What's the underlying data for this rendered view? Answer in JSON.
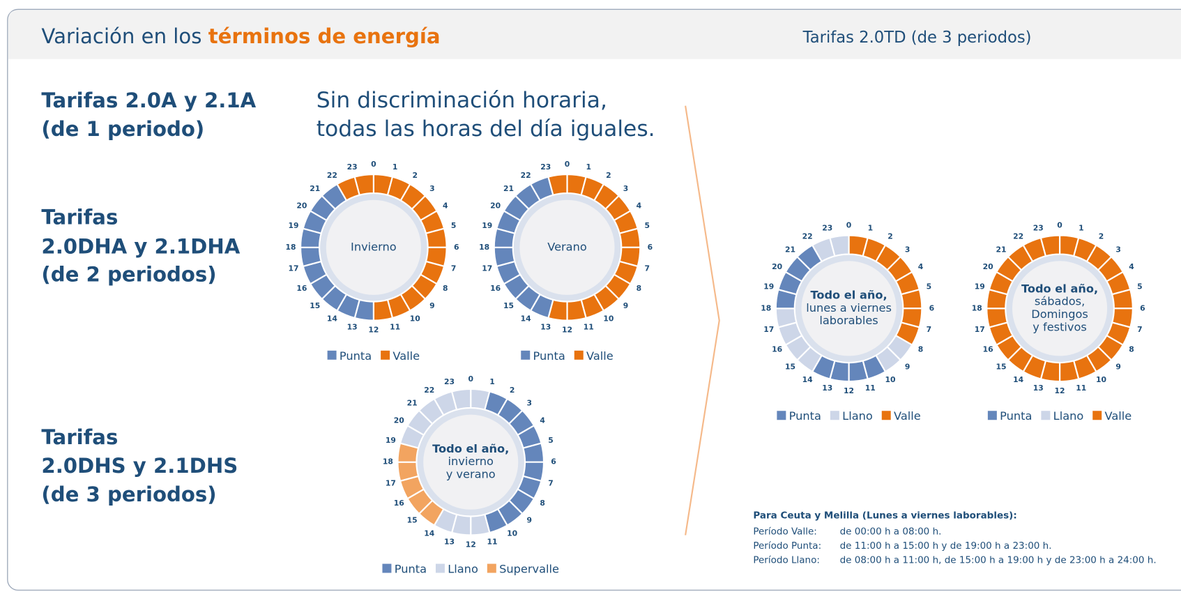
{
  "header": {
    "title_prefix": "Variación en los ",
    "title_highlight": "términos de energía",
    "right_title": "Tarifas 2.0TD (de 3 periodos)"
  },
  "tariffs": [
    {
      "lines": [
        "Tarifas 2.0A y 2.1A",
        "(de 1 periodo)"
      ],
      "note": [
        "Sin discriminación horaria,",
        "todas las horas del día iguales."
      ]
    },
    {
      "lines": [
        "Tarifas",
        "2.0DHA y 2.1DHA",
        "(de 2 periodos)"
      ]
    },
    {
      "lines": [
        "Tarifas",
        "2.0DHS y 2.1DHS",
        "(de 3 periodos)"
      ]
    }
  ],
  "hour_labels": [
    "0",
    "1",
    "2",
    "3",
    "4",
    "5",
    "6",
    "7",
    "8",
    "9",
    "10",
    "11",
    "12",
    "13",
    "14",
    "15",
    "16",
    "17",
    "18",
    "19",
    "20",
    "21",
    "22",
    "23"
  ],
  "clocks": [
    {
      "center_lines": [
        {
          "text": "Invierno",
          "bold": false
        }
      ],
      "legend": [
        {
          "name": "Punta",
          "color": "#6486bb"
        },
        {
          "name": "Valle",
          "color": "#e8730f"
        }
      ],
      "segments": [
        1,
        1,
        1,
        1,
        1,
        1,
        1,
        1,
        1,
        1,
        1,
        1,
        0,
        0,
        0,
        0,
        0,
        0,
        0,
        0,
        0,
        0,
        1,
        1
      ]
    },
    {
      "center_lines": [
        {
          "text": "Verano",
          "bold": false
        }
      ],
      "legend": [
        {
          "name": "Punta",
          "color": "#6486bb"
        },
        {
          "name": "Valle",
          "color": "#e8730f"
        }
      ],
      "segments": [
        1,
        1,
        1,
        1,
        1,
        1,
        1,
        1,
        1,
        1,
        1,
        1,
        1,
        0,
        0,
        0,
        0,
        0,
        0,
        0,
        0,
        0,
        0,
        1
      ]
    },
    {
      "center_lines": [
        {
          "text": "Todo el año,",
          "bold": true
        },
        {
          "text": "invierno",
          "bold": false
        },
        {
          "text": "y verano",
          "bold": false
        }
      ],
      "legend": [
        {
          "name": "Punta",
          "color": "#6486bb"
        },
        {
          "name": "Llano",
          "color": "#cdd6e8"
        },
        {
          "name": "Supervalle",
          "color": "#f2a460"
        }
      ],
      "segments": [
        1,
        0,
        0,
        0,
        0,
        0,
        0,
        0,
        0,
        0,
        0,
        1,
        1,
        1,
        2,
        2,
        2,
        2,
        2,
        1,
        1,
        1,
        1,
        1
      ]
    },
    {
      "center_lines": [
        {
          "text": "Todo el año,",
          "bold": true
        },
        {
          "text": "lunes a viernes",
          "bold": false
        },
        {
          "text": "laborables",
          "bold": false
        }
      ],
      "legend": [
        {
          "name": "Punta",
          "color": "#6486bb"
        },
        {
          "name": "Llano",
          "color": "#cdd6e8"
        },
        {
          "name": "Valle",
          "color": "#e8730f"
        }
      ],
      "segments": [
        2,
        2,
        2,
        2,
        2,
        2,
        2,
        2,
        1,
        1,
        0,
        0,
        0,
        0,
        1,
        1,
        1,
        1,
        0,
        0,
        0,
        0,
        1,
        1
      ]
    },
    {
      "center_lines": [
        {
          "text": "Todo el año,",
          "bold": true
        },
        {
          "text": "sábados,",
          "bold": false
        },
        {
          "text": "Domingos",
          "bold": false
        },
        {
          "text": "y festivos",
          "bold": false
        }
      ],
      "legend": [
        {
          "name": "Punta",
          "color": "#6486bb"
        },
        {
          "name": "Llano",
          "color": "#cdd6e8"
        },
        {
          "name": "Valle",
          "color": "#e8730f"
        }
      ],
      "segments": [
        2,
        2,
        2,
        2,
        2,
        2,
        2,
        2,
        2,
        2,
        2,
        2,
        2,
        2,
        2,
        2,
        2,
        2,
        2,
        2,
        2,
        2,
        2,
        2
      ]
    }
  ],
  "ceuta": {
    "title": "Para Ceuta y Melilla (Lunes a viernes laborables):",
    "rows": [
      {
        "label": "Período Valle:",
        "value": "de 00:00 h a 08:00 h."
      },
      {
        "label": "Período Punta:",
        "value": "de 11:00 h a 15:00 h y de 19:00 h a 23:00 h."
      },
      {
        "label": "Período Llano:",
        "value": "de 08:00 h a 11:00 h, de 15:00 h a 19:00 h y de 23:00 h a 24:00 h."
      }
    ]
  }
}
